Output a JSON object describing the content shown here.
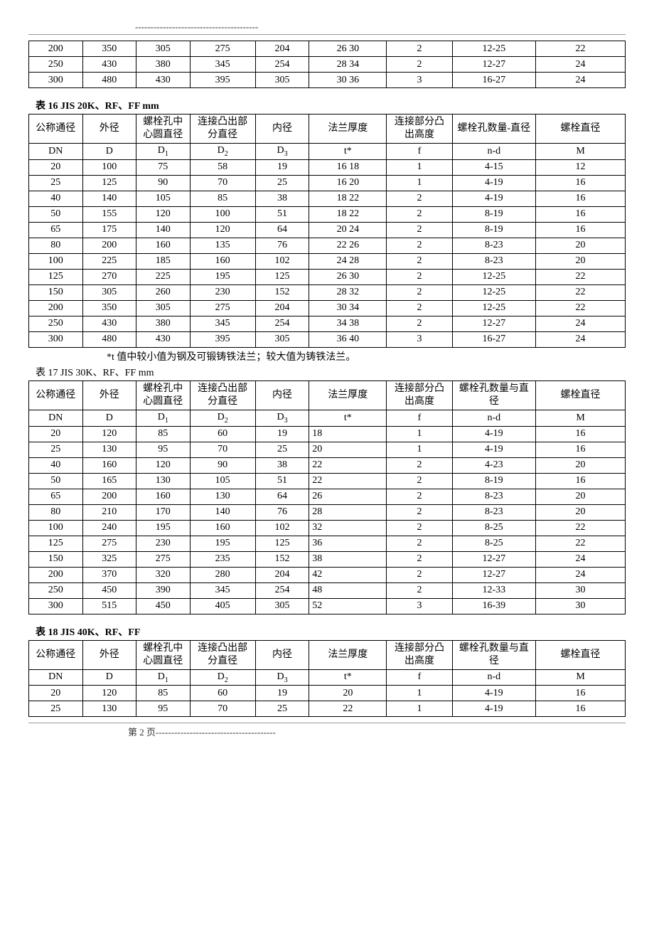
{
  "top_divider": "----------------------------------------",
  "table_top": {
    "columns_count": 9,
    "col_widths": [
      "9%",
      "9%",
      "9%",
      "11%",
      "9%",
      "13%",
      "11%",
      "14%",
      "15%"
    ],
    "rows": [
      [
        "200",
        "350",
        "305",
        "275",
        "204",
        "26  30",
        "2",
        "12-25",
        "22"
      ],
      [
        "250",
        "430",
        "380",
        "345",
        "254",
        "28  34",
        "2",
        "12-27",
        "24"
      ],
      [
        "300",
        "480",
        "430",
        "395",
        "305",
        "30  36",
        "3",
        "16-27",
        "24"
      ]
    ]
  },
  "table16": {
    "caption": "表 16 JIS 20K、RF、FF          mm",
    "headers1": [
      "公称通径",
      "外径",
      "螺栓孔中心圆直径",
      "连接凸出部分直径",
      "内径",
      "法兰厚度",
      "连接部分凸出高度",
      "螺栓孔数量-直径",
      "螺栓直径"
    ],
    "headers2": [
      "DN",
      "D",
      "D1",
      "D2",
      "D3",
      "t*",
      "f",
      "n-d",
      "M"
    ],
    "col_widths": [
      "9%",
      "9%",
      "9%",
      "11%",
      "9%",
      "13%",
      "11%",
      "14%",
      "15%"
    ],
    "rows": [
      [
        "20",
        "100",
        "75",
        "58",
        "19",
        "16 18",
        "1",
        "4-15",
        "12"
      ],
      [
        "25",
        "125",
        "90",
        "70",
        "25",
        "16 20",
        "1",
        "4-19",
        "16"
      ],
      [
        "40",
        "140",
        "105",
        "85",
        "38",
        "18 22",
        "2",
        "4-19",
        "16"
      ],
      [
        "50",
        "155",
        "120",
        "100",
        "51",
        "18 22",
        "2",
        "8-19",
        "16"
      ],
      [
        "65",
        "175",
        "140",
        "120",
        "64",
        "20 24",
        "2",
        "8-19",
        "16"
      ],
      [
        "80",
        "200",
        "160",
        "135",
        "76",
        "22 26",
        "2",
        "8-23",
        "20"
      ],
      [
        "100",
        "225",
        "185",
        "160",
        "102",
        "24 28",
        "2",
        "8-23",
        "20"
      ],
      [
        "125",
        "270",
        "225",
        "195",
        "125",
        "26 30",
        "2",
        "12-25",
        "22"
      ],
      [
        "150",
        "305",
        "260",
        "230",
        "152",
        "28 32",
        "2",
        "12-25",
        "22"
      ],
      [
        "200",
        "350",
        "305",
        "275",
        "204",
        "30 34",
        "2",
        "12-25",
        "22"
      ],
      [
        "250",
        "430",
        "380",
        "345",
        "254",
        "34 38",
        "2",
        "12-27",
        "24"
      ],
      [
        "300",
        "480",
        "430",
        "395",
        "305",
        "36 40",
        "3",
        "16-27",
        "24"
      ]
    ],
    "note": "*t 值中较小值为钢及可锻铸铁法兰；较大值为铸铁法兰。"
  },
  "table17": {
    "caption": "表 17 JIS 30K、RF、FF      mm",
    "headers1": [
      "公称通径",
      "外径",
      "螺栓孔中心圆直径",
      "连接凸出部分直径",
      "内径",
      "法兰厚度",
      "连接部分凸出高度",
      "螺栓孔数量与直径",
      "螺栓直径"
    ],
    "headers2": [
      "DN",
      "D",
      "D1",
      "D2",
      "D3",
      "t*",
      "f",
      "n-d",
      "M"
    ],
    "col_widths": [
      "9%",
      "9%",
      "9%",
      "11%",
      "9%",
      "13%",
      "11%",
      "14%",
      "15%"
    ],
    "rows": [
      [
        "20",
        "120",
        "85",
        "60",
        "19",
        "18",
        "1",
        "4-19",
        "16"
      ],
      [
        "25",
        "130",
        "95",
        "70",
        "25",
        "20",
        "1",
        "4-19",
        "16"
      ],
      [
        "40",
        "160",
        "120",
        "90",
        "38",
        "22",
        "2",
        "4-23",
        "20"
      ],
      [
        "50",
        "165",
        "130",
        "105",
        "51",
        "22",
        "2",
        "8-19",
        "16"
      ],
      [
        "65",
        "200",
        "160",
        "130",
        "64",
        "26",
        "2",
        "8-23",
        "20"
      ],
      [
        "80",
        "210",
        "170",
        "140",
        "76",
        "28",
        "2",
        "8-23",
        "20"
      ],
      [
        "100",
        "240",
        "195",
        "160",
        "102",
        "32",
        "2",
        "8-25",
        "22"
      ],
      [
        "125",
        "275",
        "230",
        "195",
        "125",
        "36",
        "2",
        "8-25",
        "22"
      ],
      [
        "150",
        "325",
        "275",
        "235",
        "152",
        "38",
        "2",
        "12-27",
        "24"
      ],
      [
        "200",
        "370",
        "320",
        "280",
        "204",
        "42",
        "2",
        "12-27",
        "24"
      ],
      [
        "250",
        "450",
        "390",
        "345",
        "254",
        "48",
        "2",
        "12-33",
        "30"
      ],
      [
        "300",
        "515",
        "450",
        "405",
        "305",
        "52",
        "3",
        "16-39",
        "30"
      ]
    ],
    "thickness_left_align": true
  },
  "table18": {
    "caption": "表 18 JIS 40K、RF、FF",
    "headers1": [
      "公称通径",
      "外径",
      "螺栓孔中心圆直径",
      "连接凸出部分直径",
      "内径",
      "法兰厚度",
      "连接部分凸出高度",
      "螺栓孔数量与直径",
      "螺栓直径"
    ],
    "headers2": [
      "DN",
      "D",
      "D1",
      "D2",
      "D3",
      "t*",
      "f",
      "n-d",
      "M"
    ],
    "col_widths": [
      "9%",
      "9%",
      "9%",
      "11%",
      "9%",
      "13%",
      "11%",
      "14%",
      "15%"
    ],
    "rows": [
      [
        "20",
        "120",
        "85",
        "60",
        "19",
        "20",
        "1",
        "4-19",
        "16"
      ],
      [
        "25",
        "130",
        "95",
        "70",
        "25",
        "22",
        "1",
        "4-19",
        "16"
      ]
    ]
  },
  "footer_line2": "第 2 页---------------------------------------"
}
